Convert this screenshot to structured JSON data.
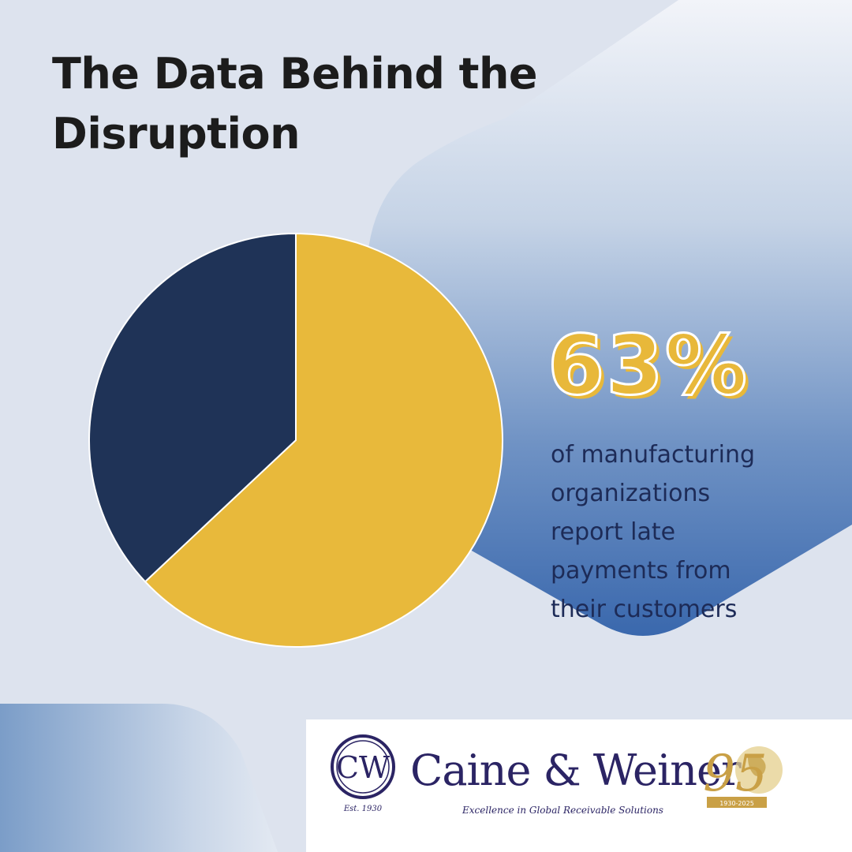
{
  "title": "The Data Behind the Disruption",
  "chart_data": {
    "type": "pie",
    "values": [
      63,
      37
    ],
    "colors": [
      "#e8b93b",
      "#1f3357"
    ]
  },
  "stat": {
    "value": "63%",
    "description": "of manufacturing organizations report late payments from their customers"
  },
  "brand": {
    "monogram": "CW",
    "name": "Caine & Weiner",
    "established": "Est. 1930",
    "tagline": "Excellence in Global Receivable Solutions",
    "anniversary_number": "95",
    "anniversary_years": "1930-2025"
  },
  "colors": {
    "background": "#dde3ee",
    "accent_gold": "#e8b83a",
    "navy": "#1f3357",
    "brand_purple": "#2b2464"
  }
}
